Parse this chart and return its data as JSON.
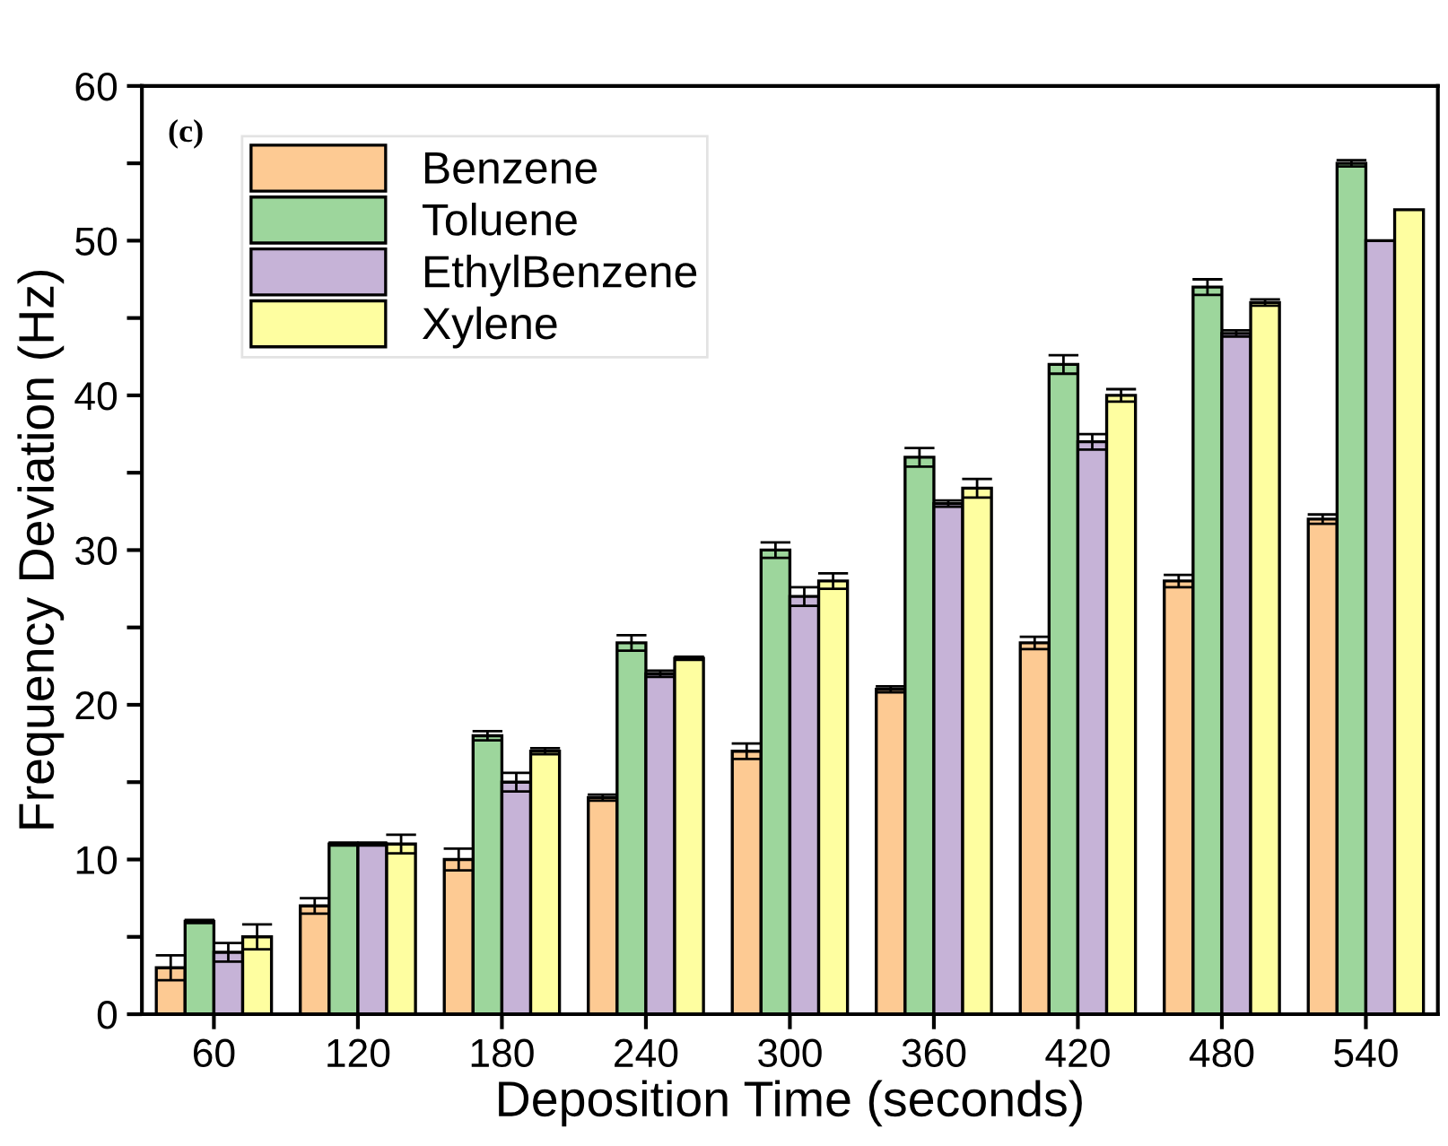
{
  "chart_data": {
    "type": "bar",
    "xlabel": "Deposition Time (seconds)",
    "ylabel": "Frequency Deviation (Hz)",
    "categories": [
      "60",
      "120",
      "180",
      "240",
      "300",
      "360",
      "420",
      "480",
      "540"
    ],
    "series": [
      {
        "name": "Benzene",
        "color": "#fdca93",
        "values": [
          3,
          7,
          10,
          14,
          17,
          21,
          24,
          28,
          32
        ],
        "errors": [
          0.8,
          0.5,
          0.7,
          0.2,
          0.5,
          0.2,
          0.4,
          0.4,
          0.3
        ]
      },
      {
        "name": "Toluene",
        "color": "#9dd69c",
        "values": [
          6,
          11,
          18,
          24,
          30,
          36,
          42,
          47,
          55
        ],
        "errors": [
          0.1,
          0.1,
          0.3,
          0.5,
          0.5,
          0.6,
          0.6,
          0.5,
          0.2
        ]
      },
      {
        "name": "EthylBenzene",
        "color": "#c6b3d7",
        "values": [
          4,
          11,
          15,
          22,
          27,
          33,
          37,
          44,
          50
        ],
        "errors": [
          0.6,
          0.1,
          0.6,
          0.2,
          0.6,
          0.2,
          0.5,
          0.2,
          null
        ]
      },
      {
        "name": "Xylene",
        "color": "#fefea0",
        "values": [
          5,
          11,
          17,
          23,
          28,
          34,
          40,
          46,
          52
        ],
        "errors": [
          0.8,
          0.6,
          0.2,
          0.1,
          0.5,
          0.6,
          0.4,
          0.2,
          null
        ]
      }
    ],
    "ylim": [
      0,
      60
    ],
    "yticks": [
      0,
      {
        "value": 5,
        "label": null
      },
      10,
      {
        "value": 15,
        "label": null
      },
      20,
      {
        "value": 25,
        "label": null
      },
      30,
      {
        "value": 35,
        "label": null
      },
      40,
      {
        "value": 45,
        "label": null
      },
      50,
      {
        "value": 55,
        "label": null
      },
      60
    ],
    "annotations": [
      "(c)"
    ],
    "legend": "top left",
    "grid": false
  }
}
